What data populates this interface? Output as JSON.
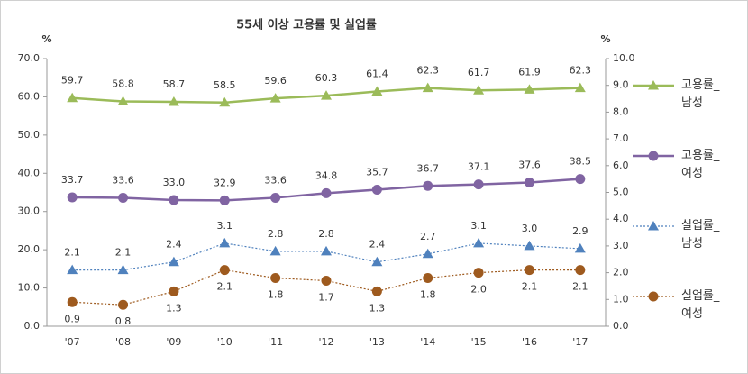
{
  "chart_data": {
    "type": "line",
    "title": "55세 이상 고용률 및 실업률",
    "y_label": "%",
    "y2_label": "%",
    "categories": [
      "'07",
      "'08",
      "'09",
      "'10",
      "'11",
      "'12",
      "'13",
      "'14",
      "'15",
      "'16",
      "'17"
    ],
    "ylim": [
      0,
      70
    ],
    "yticks": [
      {
        "value": 0,
        "label": "0.0"
      },
      {
        "value": 10,
        "label": "10.0"
      },
      {
        "value": 20,
        "label": "20.0"
      },
      {
        "value": 30,
        "label": "30.0"
      },
      {
        "value": 40,
        "label": "40.0"
      },
      {
        "value": 50,
        "label": "50.0"
      },
      {
        "value": 60,
        "label": "60.0"
      },
      {
        "value": 70,
        "label": "70.0"
      }
    ],
    "y2lim": [
      0,
      10
    ],
    "y2ticks": [
      {
        "value": 0,
        "label": "0.0"
      },
      {
        "value": 1,
        "label": "1.0"
      },
      {
        "value": 2,
        "label": "2.0"
      },
      {
        "value": 3,
        "label": "3.0"
      },
      {
        "value": 4,
        "label": "4.0"
      },
      {
        "value": 5,
        "label": "5.0"
      },
      {
        "value": 6,
        "label": "6.0"
      },
      {
        "value": 7,
        "label": "7.0"
      },
      {
        "value": 8,
        "label": "8.0"
      },
      {
        "value": 9,
        "label": "9.0"
      },
      {
        "value": 10,
        "label": "10.0"
      }
    ],
    "grid": false,
    "series": [
      {
        "name": "고용률_남성",
        "color": "#9bbb59",
        "marker": "triangle",
        "dash": "solid",
        "label_side": "above",
        "values": [
          59.7,
          58.8,
          58.7,
          58.5,
          59.6,
          60.3,
          61.4,
          62.3,
          61.7,
          61.9,
          62.3
        ],
        "value_labels": [
          "59.7",
          "58.8",
          "58.7",
          "58.5",
          "59.6",
          "60.3",
          "61.4",
          "62.3",
          "61.7",
          "61.9",
          "62.3"
        ]
      },
      {
        "name": "고용률_여성",
        "color": "#8064a2",
        "marker": "circle",
        "dash": "solid",
        "label_side": "above",
        "values": [
          33.7,
          33.6,
          33.0,
          32.9,
          33.6,
          34.8,
          35.7,
          36.7,
          37.1,
          37.6,
          38.5
        ],
        "value_labels": [
          "33.7",
          "33.6",
          "33.0",
          "32.9",
          "33.6",
          "34.8",
          "35.7",
          "36.7",
          "37.1",
          "37.6",
          "38.5"
        ]
      },
      {
        "name": "실업률_남성",
        "color": "#4f81bd",
        "marker": "triangle",
        "dash": "dotted",
        "label_side": "above",
        "axis": "y2",
        "values": [
          2.1,
          2.1,
          2.4,
          3.1,
          2.8,
          2.8,
          2.4,
          2.7,
          3.1,
          3.0,
          2.9
        ],
        "value_labels": [
          "2.1",
          "2.1",
          "2.4",
          "3.1",
          "2.8",
          "2.8",
          "2.4",
          "2.7",
          "3.1",
          "3.0",
          "2.9"
        ]
      },
      {
        "name": "실업률_여성",
        "color": "#9e5a1e",
        "marker": "circle",
        "dash": "dotted",
        "label_side": "below",
        "axis": "y2",
        "values": [
          0.9,
          0.8,
          1.3,
          2.1,
          1.8,
          1.7,
          1.3,
          1.8,
          2.0,
          2.1,
          2.1
        ],
        "value_labels": [
          "0.9",
          "0.8",
          "1.3",
          "2.1",
          "1.8",
          "1.7",
          "1.3",
          "1.8",
          "2.0",
          "2.1",
          "2.1"
        ]
      }
    ]
  }
}
